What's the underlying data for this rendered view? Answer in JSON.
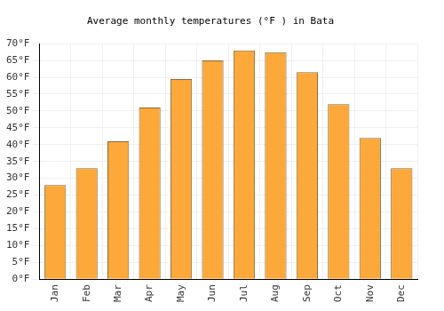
{
  "chart_data": {
    "type": "bar",
    "title": "Average monthly temperatures (°F ) in Bata",
    "categories": [
      "Jan",
      "Feb",
      "Mar",
      "Apr",
      "May",
      "Jun",
      "Jul",
      "Aug",
      "Sep",
      "Oct",
      "Nov",
      "Dec"
    ],
    "values": [
      28,
      33,
      41,
      51,
      59.5,
      65,
      68,
      67.5,
      61.5,
      52,
      42,
      33
    ],
    "color": "#fca83a",
    "ylim": [
      0,
      70
    ],
    "yticks": [
      {
        "value": 0,
        "label": "0°F"
      },
      {
        "value": 5,
        "label": "5°F"
      },
      {
        "value": 10,
        "label": "10°F"
      },
      {
        "value": 15,
        "label": "15°F"
      },
      {
        "value": 20,
        "label": "20°F"
      },
      {
        "value": 25,
        "label": "25°F"
      },
      {
        "value": 30,
        "label": "30°F"
      },
      {
        "value": 35,
        "label": "35°F"
      },
      {
        "value": 40,
        "label": "40°F"
      },
      {
        "value": 45,
        "label": "45°F"
      },
      {
        "value": 50,
        "label": "50°F"
      },
      {
        "value": 55,
        "label": "55°F"
      },
      {
        "value": 60,
        "label": "60°F"
      },
      {
        "value": 65,
        "label": "65°F"
      },
      {
        "value": 70,
        "label": "70°F"
      }
    ],
    "grid": true
  }
}
